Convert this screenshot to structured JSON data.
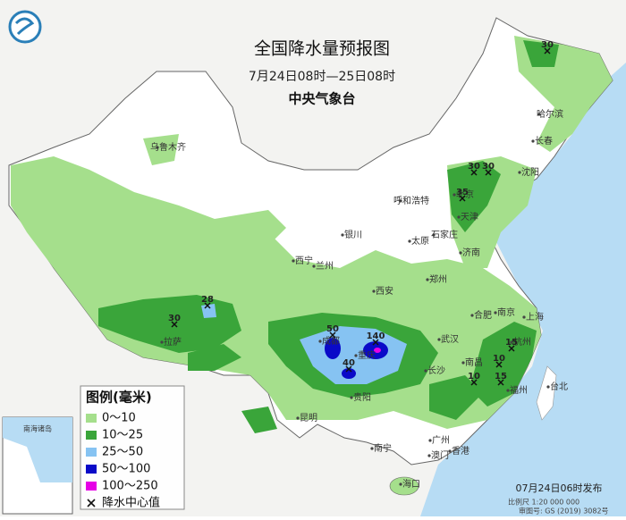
{
  "header": {
    "title": "全国降水量预报图",
    "period": "7月24日08时—25日08时",
    "issuer": "中央气象台"
  },
  "legend": {
    "title": "图例(毫米)",
    "items": [
      {
        "label": "0～10",
        "color": "#a5df8c"
      },
      {
        "label": "10～25",
        "color": "#3aa53a"
      },
      {
        "label": "25～50",
        "color": "#86c3f2"
      },
      {
        "label": "50～100",
        "color": "#0a0ac8"
      },
      {
        "label": "100～250",
        "color": "#e600e6"
      }
    ],
    "center_label": "降水中心值"
  },
  "cities": [
    "乌鲁木齐",
    "哈尔滨",
    "长春",
    "沈阳",
    "北京",
    "天津",
    "呼和浩特",
    "银川",
    "石家庄",
    "太原",
    "西宁",
    "兰州",
    "济南",
    "郑州",
    "西安",
    "合肥",
    "南京",
    "上海",
    "武汉",
    "成都",
    "重庆",
    "杭州",
    "拉萨",
    "长沙",
    "南昌",
    "贵阳",
    "福州",
    "台北",
    "昆明",
    "南宁",
    "广州",
    "澳门",
    "香港",
    "海口"
  ],
  "centers": [
    "30",
    "30",
    "30",
    "35",
    "28",
    "30",
    "50",
    "140",
    "40",
    "15",
    "10",
    "10",
    "15"
  ],
  "inset": {
    "title": "南海诸岛"
  },
  "footer": {
    "scale": "比例尺 1:20 000 000",
    "approval": "审图号: GS (2019) 3082号",
    "published": "07月24日06时发布"
  }
}
